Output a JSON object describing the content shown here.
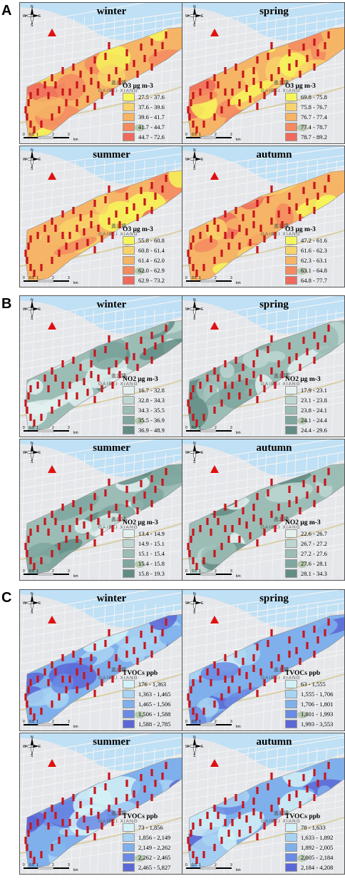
{
  "sections": [
    {
      "letter": "A",
      "variable": "O3",
      "panels": [
        {
          "season": "winter",
          "legend_title": "O3  μg m-3",
          "classes": [
            "27.5 - 37.6",
            "37.6 - 39.6",
            "39.6 - 41.7",
            "41.7 - 44.7",
            "44.7 - 72.6"
          ]
        },
        {
          "season": "spring",
          "legend_title": "O3  μg m-3",
          "classes": [
            "69.8 - 75.8",
            "75.8 - 76.7",
            "76.7 - 77.4",
            "77.4 - 78.7",
            "78.7 - 89.2"
          ]
        },
        {
          "season": "summer",
          "legend_title": "O3  μg m-3",
          "classes": [
            "55.8 - 60.8",
            "60.8 - 61.4",
            "61.4 - 62.0",
            "62.0 - 62.9",
            "62.9 - 73.2"
          ]
        },
        {
          "season": "autumn",
          "legend_title": "O3  μg m-3",
          "classes": [
            "47.2 - 61.6",
            "61.6 - 62.3",
            "62.3 - 63.1",
            "63.1 - 64.8",
            "64.8 - 77.7"
          ]
        }
      ],
      "palette": [
        "#f6f65a",
        "#f8d26a",
        "#f5b466",
        "#f38a60",
        "#ef6a5c"
      ]
    },
    {
      "letter": "B",
      "variable": "NO2",
      "panels": [
        {
          "season": "winter",
          "legend_title": "NO2  μg m-3",
          "classes": [
            "16.7 - 32.8",
            "32.8 - 34.3",
            "34.3 - 35.5",
            "35.5 - 36.9",
            "36.9 - 48.9"
          ]
        },
        {
          "season": "spring",
          "legend_title": "NO2  μg m-3",
          "classes": [
            "17.9 - 23.1",
            "23.1 - 23.8",
            "23.8 - 24.1",
            "24.1 - 24.4",
            "24.4 - 29.6"
          ]
        },
        {
          "season": "summer",
          "legend_title": "NO2  μg m-3",
          "classes": [
            "13.4 - 14.9",
            "14.9 - 15.1",
            "15.1 - 15.4",
            "15.4 - 15.8",
            "15.8 - 19.3"
          ]
        },
        {
          "season": "autumn",
          "legend_title": "NO2  μg m-3",
          "classes": [
            "22.6 - 26.7",
            "26.7 - 27.2",
            "27.2 - 27.6",
            "27.6 - 28.1",
            "28.1 - 34.3"
          ]
        }
      ],
      "palette": [
        "#e3f0ee",
        "#bdd6d1",
        "#9cbdb6",
        "#7fa79f",
        "#628c84"
      ]
    },
    {
      "letter": "C",
      "variable": "TVOCs",
      "panels": [
        {
          "season": "winter",
          "legend_title": "TVOCs ppb",
          "classes": [
            "176 - 1,363",
            "1,363 - 1,465",
            "1,465 - 1,506",
            "1,506 - 1,588",
            "1,588 - 2,785"
          ]
        },
        {
          "season": "spring",
          "legend_title": "TVOCs ppb",
          "classes": [
            "63 - 1,555",
            "1,555 - 1,706",
            "1,706 - 1,801",
            "1,801 - 1,993",
            "1,993 - 3,553"
          ]
        },
        {
          "season": "summer",
          "legend_title": "TVOCs ppb",
          "classes": [
            "73 - 1,856",
            "1,856 - 2,149",
            "2,149 - 2,262",
            "2,262 - 2,465",
            "2,465 - 5,827"
          ]
        },
        {
          "season": "autumn",
          "legend_title": "TVOCs ppb",
          "classes": [
            "78 - 1,633",
            "1,633 - 1,892",
            "1,892 - 2,005",
            "2,005 - 2,184",
            "2,184 - 4,208"
          ]
        }
      ],
      "palette": [
        "#d3f1f6",
        "#a9d3f2",
        "#7fb0ec",
        "#6a8be3",
        "#5b67d6"
      ]
    }
  ],
  "map_text": {
    "district_name": "GAIBEI XIANG",
    "district_name_cn": "盖北镇",
    "compass": {
      "n": "N",
      "s": "S",
      "e": "E",
      "w": "W"
    },
    "scale_ticks": [
      "0",
      "0.5",
      "1",
      "2",
      "3"
    ],
    "scale_unit": "km"
  },
  "colors": {
    "monitor_marker": "#c8161d",
    "factory_marker": "#e01010",
    "water": "#bfe0f5",
    "road": "#f3f3f3"
  }
}
